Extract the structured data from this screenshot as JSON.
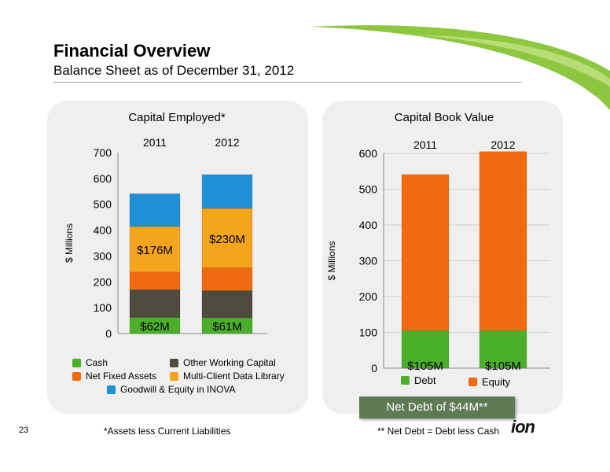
{
  "header": {
    "title": "Financial Overview",
    "subtitle": "Balance Sheet as of December 31, 2012"
  },
  "page_number": "23",
  "footnotes": {
    "capital_employed": "*Assets less Current Liabilities",
    "net_debt": "** Net Debt = Debt less Cash"
  },
  "callout": "Net Debt of $44M**",
  "logo_text": "ion",
  "colors": {
    "brand_green": "#8dc63f",
    "callout_bg": "#5e7a55"
  },
  "chart_data": [
    {
      "type": "bar",
      "stacked": true,
      "title": "Capital Employed*",
      "ylabel": "$ Millions",
      "categories": [
        "2011",
        "2012"
      ],
      "ylim": [
        0,
        700
      ],
      "yticks": [
        0,
        100,
        200,
        300,
        400,
        500,
        600,
        700
      ],
      "grid": false,
      "legend_position": "bottom",
      "series": [
        {
          "name": "Cash",
          "values": [
            62,
            61
          ],
          "color": "#4caf2a",
          "labels": [
            "$62M",
            "$61M"
          ]
        },
        {
          "name": "Other Working Capital",
          "values": [
            108,
            105
          ],
          "color": "#4f4b3f",
          "labels": [
            "",
            ""
          ]
        },
        {
          "name": "Net Fixed Assets",
          "values": [
            68,
            88
          ],
          "color": "#f26a10",
          "labels": [
            "",
            ""
          ]
        },
        {
          "name": "Multi-Client Data Library",
          "values": [
            176,
            230
          ],
          "color": "#f4a51c",
          "labels": [
            "$176M",
            "$230M"
          ]
        },
        {
          "name": "Goodwill & Equity in INOVA",
          "values": [
            127,
            131
          ],
          "color": "#1f8fd8",
          "labels": [
            "",
            ""
          ]
        }
      ]
    },
    {
      "type": "bar",
      "stacked": true,
      "title": "Capital Book Value",
      "ylabel": "$ Millions",
      "categories": [
        "2011",
        "2012"
      ],
      "ylim": [
        0,
        600
      ],
      "yticks": [
        0,
        100,
        200,
        300,
        400,
        500,
        600
      ],
      "grid": true,
      "legend_position": "bottom",
      "series": [
        {
          "name": "Debt",
          "values": [
            105,
            105
          ],
          "color": "#4caf2a",
          "labels": [
            "$105M",
            "$105M"
          ]
        },
        {
          "name": "Equity",
          "values": [
            436,
            500
          ],
          "color": "#f26a10",
          "labels": [
            "",
            ""
          ]
        }
      ]
    }
  ]
}
